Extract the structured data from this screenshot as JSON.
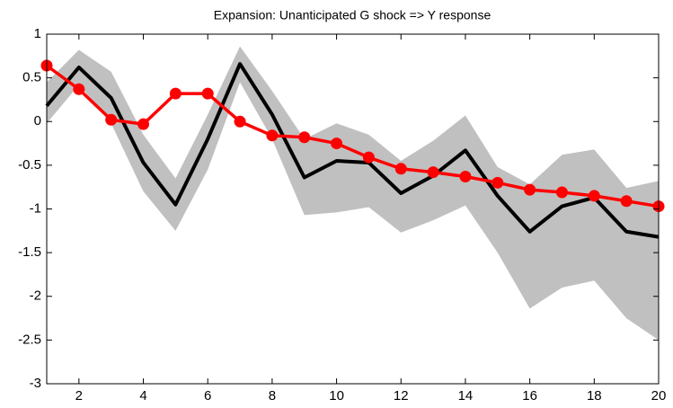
{
  "chart_data": {
    "type": "line",
    "title": "Expansion: Unanticipated G shock => Y response",
    "x": [
      1,
      2,
      3,
      4,
      5,
      6,
      7,
      8,
      9,
      10,
      11,
      12,
      13,
      14,
      15,
      16,
      17,
      18,
      19,
      20
    ],
    "band": {
      "color": "#c0c0c0",
      "upper": [
        0.45,
        0.82,
        0.57,
        -0.15,
        -0.65,
        0.08,
        0.86,
        0.35,
        -0.2,
        -0.02,
        -0.15,
        -0.45,
        -0.22,
        0.07,
        -0.52,
        -0.72,
        -0.38,
        -0.32,
        -0.76,
        -0.68
      ],
      "lower": [
        -0.02,
        0.42,
        -0.02,
        -0.8,
        -1.25,
        -0.55,
        0.45,
        -0.2,
        -1.07,
        -1.04,
        -0.98,
        -1.27,
        -1.13,
        -0.96,
        -1.5,
        -2.14,
        -1.9,
        -1.82,
        -2.25,
        -2.5
      ]
    },
    "series": [
      {
        "color": "#000000",
        "markers": false,
        "values": [
          0.18,
          0.62,
          0.27,
          -0.47,
          -0.95,
          -0.2,
          0.66,
          0.08,
          -0.64,
          -0.45,
          -0.47,
          -0.82,
          -0.62,
          -0.33,
          -0.85,
          -1.26,
          -0.97,
          -0.87,
          -1.26,
          -1.32
        ]
      },
      {
        "color": "#ff0000",
        "markers": true,
        "values": [
          0.64,
          0.37,
          0.02,
          -0.03,
          0.32,
          0.32,
          0.0,
          -0.16,
          -0.18,
          -0.25,
          -0.41,
          -0.54,
          -0.58,
          -0.63,
          -0.7,
          -0.78,
          -0.81,
          -0.85,
          -0.91,
          -0.97
        ]
      }
    ],
    "xlim": [
      1,
      20
    ],
    "xticks": [
      2,
      4,
      6,
      8,
      10,
      12,
      14,
      16,
      18,
      20
    ],
    "ylim": [
      -3,
      1
    ],
    "yticks": [
      -3,
      -2.5,
      -2,
      -1.5,
      -1,
      -0.5,
      0,
      0.5,
      1
    ],
    "grid": false
  }
}
